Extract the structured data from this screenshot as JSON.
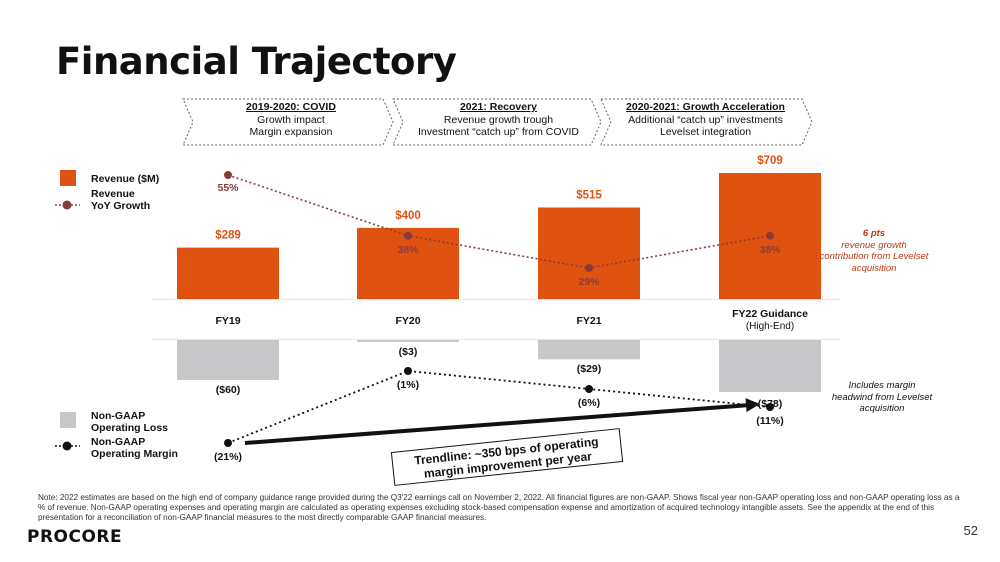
{
  "title": "Financial Trajectory",
  "phases": [
    {
      "title": "2019-2020: COVID",
      "line1": "Growth impact",
      "line2": "Margin expansion"
    },
    {
      "title": "2021: Recovery",
      "line1": "Revenue growth trough",
      "line2": "Investment “catch up” from COVID"
    },
    {
      "title": "2020-2021: Growth Acceleration",
      "line1": "Additional “catch up” investments",
      "line2": "Levelset integration"
    }
  ],
  "legend": {
    "revenue": "Revenue ($M)",
    "revenue_growth": "Revenue YoY Growth",
    "op_loss": "Non-GAAP Operating Loss",
    "op_margin": "Non-GAAP Operating Margin"
  },
  "colors": {
    "revenue": "#e0520f",
    "op_loss": "#c8c8ca",
    "growth_line": "#8b3a3a",
    "margin_line": "#111111"
  },
  "chart_data": {
    "type": "bar",
    "categories": [
      "FY19",
      "FY20",
      "FY21",
      "FY22 Guidance"
    ],
    "category_sublabels": [
      "",
      "",
      "",
      "(High-End)"
    ],
    "series": [
      {
        "name": "Revenue ($M)",
        "values": [
          289,
          400,
          515,
          709
        ],
        "labels": [
          "$289",
          "$400",
          "$515",
          "$709"
        ]
      },
      {
        "name": "Revenue YoY Growth",
        "values": [
          55,
          38,
          29,
          38
        ],
        "labels": [
          "55%",
          "38%",
          "29%",
          "38%"
        ]
      },
      {
        "name": "Non-GAAP Operating Loss",
        "values": [
          -60,
          -3,
          -29,
          -78
        ],
        "labels": [
          "($60)",
          "($3)",
          "($29)",
          "($78)"
        ]
      },
      {
        "name": "Non-GAAP Operating Margin",
        "values": [
          -21,
          -1,
          -6,
          -11
        ],
        "labels": [
          "(21%)",
          "(1%)",
          "(6%)",
          "(11%)"
        ]
      }
    ]
  },
  "annotations": {
    "levelset_bold": "6 pts",
    "levelset_rest": "revenue growth contribution from Levelset acquisition",
    "margin_note": "Includes margin headwind from Levelset acquisition",
    "trendline": "Trendline: ~350 bps of operating margin improvement per year"
  },
  "note": "Note: 2022 estimates are based on the high end of company guidance range provided during the Q3'22 earnings call on November 2, 2022. All financial figures are non-GAAP. Shows fiscal year non-GAAP operating loss and non-GAAP operating loss as a % of revenue. Non-GAAP operating expenses and operating margin are calculated as operating expenses excluding stock-based compensation expense and amortization of acquired technology intangible assets. See the appendix at the end of this presentation for a reconciliation of non-GAAP financial measures to the most directly comparable GAAP financial measures.",
  "logo": "PROCORE",
  "page_number": "52"
}
